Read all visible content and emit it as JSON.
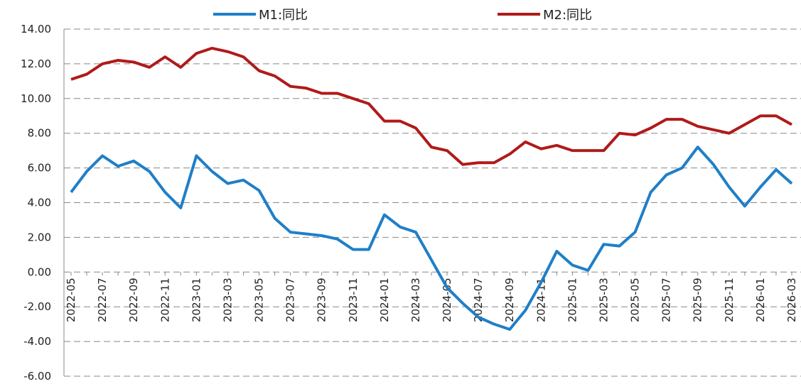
{
  "chart_data": {
    "type": "line",
    "categories": [
      "2022-05",
      null,
      "2022-07",
      null,
      "2022-09",
      null,
      "2022-11",
      null,
      "2023-01",
      null,
      "2023-03",
      null,
      "2023-05",
      null,
      "2023-07",
      null,
      "2023-09",
      null,
      "2023-11",
      null,
      "2024-01",
      null,
      "2024-03",
      null,
      "2024-05",
      null,
      "2024-07",
      null,
      "2024-09",
      null,
      "2024-11",
      null,
      "2025-01",
      null,
      "2025-03",
      null,
      "2025-05",
      null,
      "2025-07",
      null,
      "2025-09",
      null,
      "2025-11",
      null,
      "2026-01",
      null,
      "2026-03"
    ],
    "series": [
      {
        "name": "M1:同比",
        "color": "#1f7fc8",
        "values": [
          4.6,
          5.8,
          6.7,
          6.1,
          6.4,
          5.8,
          4.6,
          3.7,
          6.7,
          5.8,
          5.1,
          5.3,
          4.7,
          3.1,
          2.3,
          2.2,
          2.1,
          1.9,
          1.3,
          1.3,
          3.3,
          2.6,
          2.3,
          0.7,
          -0.9,
          -1.8,
          -2.6,
          -3.0,
          -3.3,
          -2.2,
          -0.6,
          1.2,
          0.4,
          0.1,
          1.6,
          1.5,
          2.3,
          4.6,
          5.6,
          6.0,
          7.2,
          6.2,
          4.9,
          3.8,
          4.9,
          5.9,
          5.1
        ]
      },
      {
        "name": "M2:同比",
        "color": "#b01a1a",
        "values": [
          11.1,
          11.4,
          12.0,
          12.2,
          12.1,
          11.8,
          12.4,
          11.8,
          12.6,
          12.9,
          12.7,
          12.4,
          11.6,
          11.3,
          10.7,
          10.6,
          10.3,
          10.3,
          10.0,
          9.7,
          8.7,
          8.7,
          8.3,
          7.2,
          7.0,
          6.2,
          6.3,
          6.3,
          6.8,
          7.5,
          7.1,
          7.3,
          7.0,
          7.0,
          7.0,
          8.0,
          7.9,
          8.3,
          8.8,
          8.8,
          8.4,
          8.2,
          8.0,
          8.5,
          9.0,
          9.0,
          8.5
        ]
      }
    ],
    "ylim": [
      -6,
      14
    ],
    "yticks": [
      {
        "value": -6,
        "label": "-6.00"
      },
      {
        "value": -4,
        "label": "-4.00"
      },
      {
        "value": -2,
        "label": "-2.00"
      },
      {
        "value": 0,
        "label": "0.00"
      },
      {
        "value": 2,
        "label": "2.00"
      },
      {
        "value": 4,
        "label": "4.00"
      },
      {
        "value": 6,
        "label": "6.00"
      },
      {
        "value": 8,
        "label": "8.00"
      },
      {
        "value": 10,
        "label": "10.00"
      },
      {
        "value": 12,
        "label": "12.00"
      },
      {
        "value": 14,
        "label": "14.00"
      }
    ],
    "grid": true
  }
}
